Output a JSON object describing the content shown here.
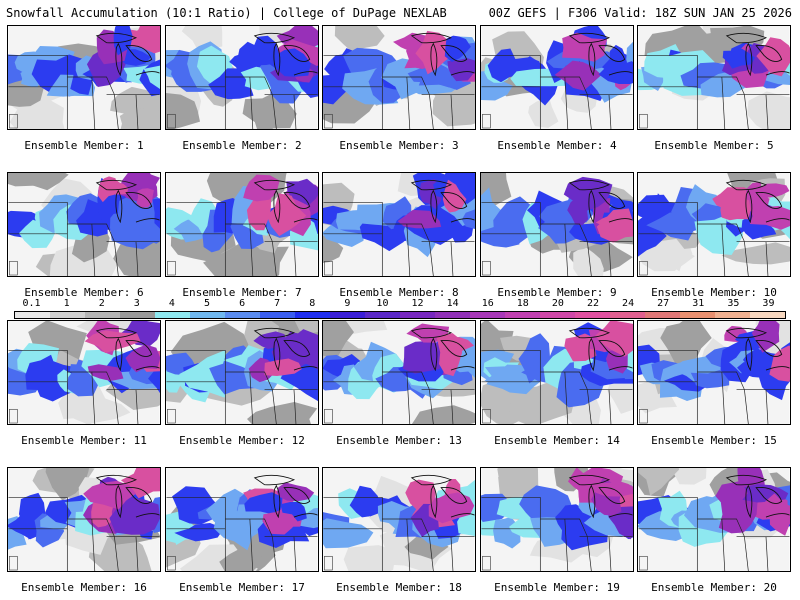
{
  "header": {
    "left_title": "Snowfall Accumulation (10:1 Ratio) | College of DuPage NEXLAB",
    "right_title": "00Z GEFS | F306 Valid: 18Z SUN JAN 25 2026"
  },
  "legend": {
    "labels": [
      "0.1",
      "1",
      "2",
      "3",
      "4",
      "5",
      "6",
      "7",
      "8",
      "9",
      "10",
      "12",
      "14",
      "16",
      "18",
      "20",
      "22",
      "24",
      "27",
      "31",
      "35",
      "39"
    ],
    "colors": [
      "#e8e8e8",
      "#d0d0d0",
      "#b4b4b4",
      "#9a9a9a",
      "#8ee8f0",
      "#70b8f0",
      "#5a8cf0",
      "#3a5ef0",
      "#1e2ef0",
      "#3a1ed8",
      "#5a28c8",
      "#7828c0",
      "#9030b8",
      "#a838b8",
      "#c040b0",
      "#d048a8",
      "#e050a0",
      "#e06090",
      "#e07878",
      "#e89070",
      "#f0b090",
      "#f8d8c0"
    ]
  },
  "panels": [
    {
      "label": "Ensemble Member: 1"
    },
    {
      "label": "Ensemble Member: 2"
    },
    {
      "label": "Ensemble Member: 3"
    },
    {
      "label": "Ensemble Member: 4"
    },
    {
      "label": "Ensemble Member: 5"
    },
    {
      "label": "Ensemble Member: 6"
    },
    {
      "label": "Ensemble Member: 7"
    },
    {
      "label": "Ensemble Member: 8"
    },
    {
      "label": "Ensemble Member: 9"
    },
    {
      "label": "Ensemble Member: 10"
    },
    {
      "label": "Ensemble Member: 11"
    },
    {
      "label": "Ensemble Member: 12"
    },
    {
      "label": "Ensemble Member: 13"
    },
    {
      "label": "Ensemble Member: 14"
    },
    {
      "label": "Ensemble Member: 15"
    },
    {
      "label": "Ensemble Member: 16"
    },
    {
      "label": "Ensemble Member: 17"
    },
    {
      "label": "Ensemble Member: 18"
    },
    {
      "label": "Ensemble Member: 19"
    },
    {
      "label": "Ensemble Member: 20"
    }
  ]
}
